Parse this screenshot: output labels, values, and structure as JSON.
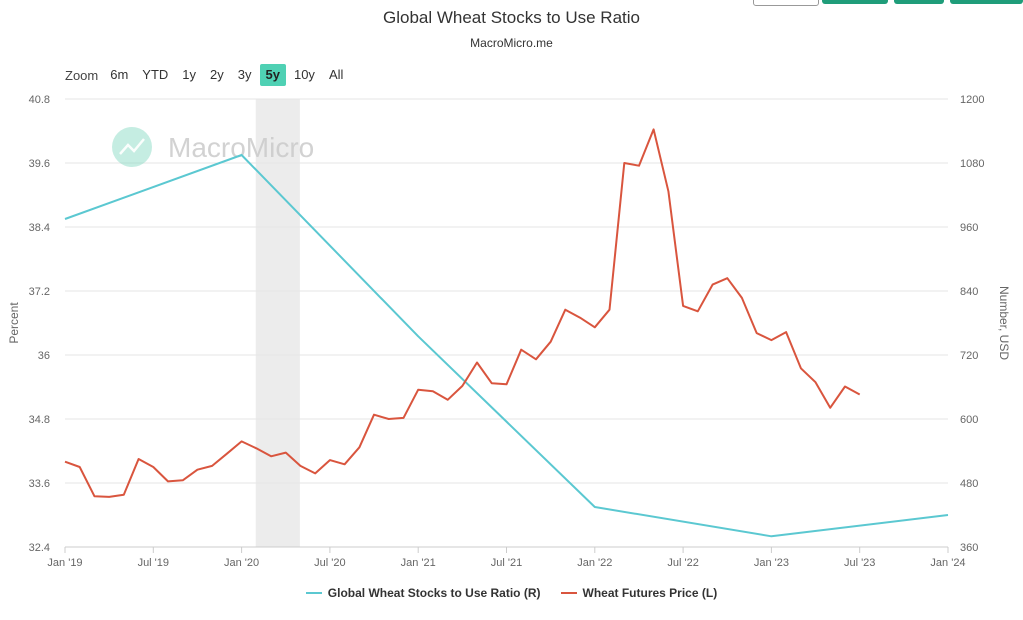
{
  "header": {
    "title": "Global Wheat Stocks to Use Ratio",
    "subtitle": "MacroMicro.me"
  },
  "zoom": {
    "label": "Zoom",
    "buttons": [
      "6m",
      "YTD",
      "1y",
      "2y",
      "3y",
      "5y",
      "10y",
      "All"
    ],
    "active": "5y"
  },
  "watermark": {
    "text": "MacroMicro"
  },
  "colors": {
    "ratio": "#5bc8d1",
    "price": "#d9553e",
    "active_zoom": "#4fd1b4",
    "brand": "#1f9d7a"
  },
  "chart_data": {
    "type": "line",
    "title": "Global Wheat Stocks to Use Ratio",
    "subtitle": "MacroMicro.me",
    "x_range": [
      2019.0,
      2024.0
    ],
    "x_ticks": [
      {
        "value": 2019.0,
        "label": "Jan '19"
      },
      {
        "value": 2019.5,
        "label": "Jul '19"
      },
      {
        "value": 2020.0,
        "label": "Jan '20"
      },
      {
        "value": 2020.5,
        "label": "Jul '20"
      },
      {
        "value": 2021.0,
        "label": "Jan '21"
      },
      {
        "value": 2021.5,
        "label": "Jul '21"
      },
      {
        "value": 2022.0,
        "label": "Jan '22"
      },
      {
        "value": 2022.5,
        "label": "Jul '22"
      },
      {
        "value": 2023.0,
        "label": "Jan '23"
      },
      {
        "value": 2023.5,
        "label": "Jul '23"
      },
      {
        "value": 2024.0,
        "label": "Jan '24"
      }
    ],
    "left_axis": {
      "label": "Percent",
      "range": [
        32.4,
        40.8
      ],
      "ticks": [
        "32.4",
        "33.6",
        "34.8",
        "36",
        "37.2",
        "38.4",
        "39.6",
        "40.8"
      ]
    },
    "right_axis": {
      "label": "Number, USD",
      "range": [
        360,
        1200
      ],
      "ticks": [
        "360",
        "480",
        "600",
        "720",
        "840",
        "960",
        "1080",
        "1200"
      ]
    },
    "shaded_band": {
      "x_start": 2020.08,
      "x_end": 2020.33
    },
    "series": [
      {
        "name": "Global Wheat Stocks to Use Ratio (R)",
        "color": "#5bc8d1",
        "x": [
          2019.0,
          2020.0,
          2021.0,
          2022.0,
          2023.0,
          2024.0
        ],
        "values": [
          38.55,
          39.75,
          36.35,
          33.15,
          32.6,
          33.0
        ]
      },
      {
        "name": "Wheat Futures Price (L)",
        "color": "#d9553e",
        "x": [
          2019.0,
          2019.083,
          2019.167,
          2019.25,
          2019.333,
          2019.417,
          2019.5,
          2019.583,
          2019.667,
          2019.75,
          2019.833,
          2019.917,
          2020.0,
          2020.083,
          2020.167,
          2020.25,
          2020.333,
          2020.417,
          2020.5,
          2020.583,
          2020.667,
          2020.75,
          2020.833,
          2020.917,
          2021.0,
          2021.083,
          2021.167,
          2021.25,
          2021.333,
          2021.417,
          2021.5,
          2021.583,
          2021.667,
          2021.75,
          2021.833,
          2021.917,
          2022.0,
          2022.083,
          2022.167,
          2022.25,
          2022.333,
          2022.417,
          2022.5,
          2022.583,
          2022.667,
          2022.75,
          2022.833,
          2022.917,
          2023.0,
          2023.083,
          2023.167,
          2023.25,
          2023.333,
          2023.417,
          2023.5
        ],
        "values": [
          520,
          510,
          455,
          454,
          458,
          525,
          510,
          483,
          485,
          505,
          512,
          535,
          558,
          545,
          530,
          537,
          512,
          498,
          523,
          515,
          547,
          608,
          600,
          602,
          655,
          652,
          636,
          662,
          706,
          667,
          665,
          730,
          712,
          745,
          805,
          790,
          772,
          805,
          1080,
          1075,
          1143,
          1027,
          812,
          802,
          852,
          864,
          827,
          761,
          748,
          763,
          695,
          669,
          621,
          661,
          646
        ]
      }
    ],
    "legend_position": "bottom-center",
    "grid": true
  }
}
